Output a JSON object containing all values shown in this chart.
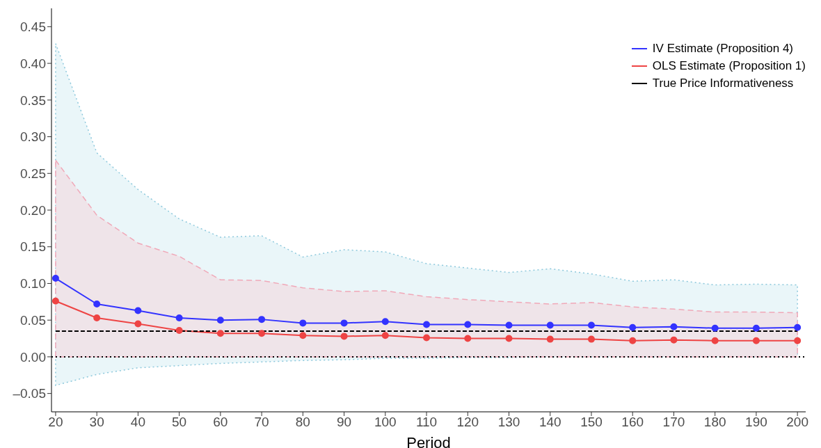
{
  "chart_data": {
    "type": "line",
    "xlabel": "Period",
    "x": [
      20,
      30,
      40,
      50,
      60,
      70,
      80,
      90,
      100,
      110,
      120,
      130,
      140,
      150,
      160,
      170,
      180,
      190,
      200
    ],
    "series": [
      {
        "name": "IV  Estimate (Proposition 4)",
        "color": "#3333ff",
        "marker": "circle",
        "line_style": "solid",
        "values": [
          0.107,
          0.072,
          0.063,
          0.053,
          0.05,
          0.051,
          0.046,
          0.046,
          0.048,
          0.044,
          0.044,
          0.043,
          0.043,
          0.043,
          0.04,
          0.041,
          0.039,
          0.039,
          0.04
        ],
        "lower": [
          -0.039,
          -0.024,
          -0.015,
          -0.012,
          -0.009,
          -0.007,
          -0.005,
          -0.004,
          -0.002,
          -0.002,
          -0.001,
          -0.001,
          0,
          0,
          0,
          0,
          0,
          0,
          0
        ],
        "upper": [
          0.427,
          0.278,
          0.228,
          0.188,
          0.163,
          0.165,
          0.136,
          0.146,
          0.143,
          0.127,
          0.121,
          0.115,
          0.12,
          0.113,
          0.103,
          0.105,
          0.098,
          0.099,
          0.098
        ]
      },
      {
        "name": "OLS Estimate (Proposition 1)",
        "color": "#ee4444",
        "marker": "circle",
        "line_style": "solid",
        "values": [
          0.076,
          0.053,
          0.045,
          0.036,
          0.032,
          0.032,
          0.029,
          0.028,
          0.029,
          0.026,
          0.025,
          0.025,
          0.024,
          0.024,
          0.022,
          0.023,
          0.022,
          0.022,
          0.022
        ],
        "lower": [
          0,
          0,
          0,
          0,
          0,
          0,
          0,
          0,
          0,
          0,
          0,
          0,
          0,
          0,
          0,
          0,
          0,
          0,
          0
        ],
        "upper": [
          0.268,
          0.193,
          0.155,
          0.137,
          0.105,
          0.104,
          0.094,
          0.089,
          0.09,
          0.082,
          0.078,
          0.075,
          0.072,
          0.074,
          0.068,
          0.065,
          0.061,
          0.061,
          0.06
        ]
      },
      {
        "name": "True Price Informativeness",
        "color": "#000000",
        "marker": "none",
        "line_style": "dashed",
        "values": [
          0.035,
          0.035,
          0.035,
          0.035,
          0.035,
          0.035,
          0.035,
          0.035,
          0.035,
          0.035,
          0.035,
          0.035,
          0.035,
          0.035,
          0.035,
          0.035,
          0.035,
          0.035,
          0.035
        ]
      }
    ],
    "ref_lines": [
      {
        "axis": "y",
        "value": 0,
        "color": "#000000",
        "line_style": "dotted"
      }
    ],
    "xlim": [
      19,
      202
    ],
    "xticks": [
      20,
      30,
      40,
      50,
      60,
      70,
      80,
      90,
      100,
      110,
      120,
      130,
      140,
      150,
      160,
      170,
      180,
      190,
      200
    ],
    "ylim": [
      -0.075,
      0.475
    ],
    "yticks": [
      {
        "value": -0.05,
        "label": "–0.05"
      },
      {
        "value": 0,
        "label": "0.00"
      },
      0.05,
      {
        "value": 0.1,
        "label": "0.10"
      },
      0.15,
      {
        "value": 0.2,
        "label": "0.20"
      },
      0.25,
      {
        "value": 0.3,
        "label": "0.30"
      },
      0.35,
      {
        "value": 0.4,
        "label": "0.40"
      },
      0.45
    ],
    "grid": false,
    "legend": "top right"
  }
}
